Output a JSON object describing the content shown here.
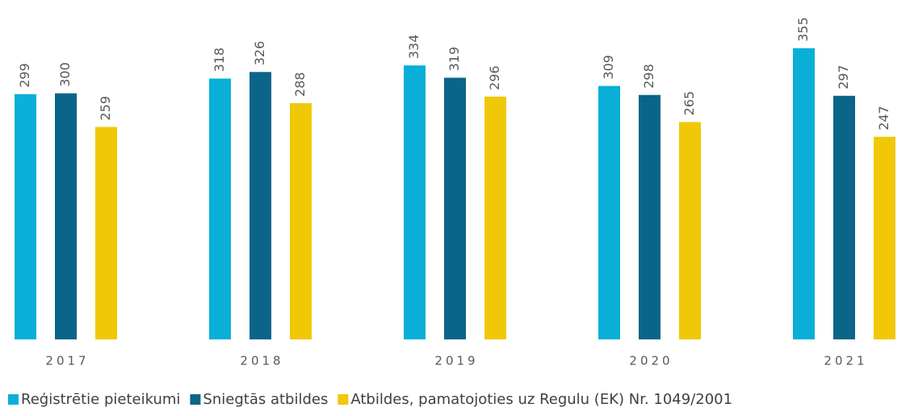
{
  "chart_data": {
    "type": "bar",
    "categories": [
      "2017",
      "2018",
      "2019",
      "2020",
      "2021"
    ],
    "series": [
      {
        "name": "Reģistrētie pieteikumi",
        "color": "#0aafd8",
        "values": [
          299,
          318,
          334,
          309,
          355
        ]
      },
      {
        "name": "Sniegtās atbildes",
        "color": "#0a6588",
        "values": [
          300,
          326,
          319,
          298,
          297
        ]
      },
      {
        "name": "Atbildes, pamatojoties uz Regulu (EK) Nr. 1049/2001",
        "color": "#f0c808",
        "values": [
          259,
          288,
          296,
          265,
          247
        ]
      }
    ],
    "ylim": [
      0,
      400
    ],
    "legend": "bottom"
  }
}
